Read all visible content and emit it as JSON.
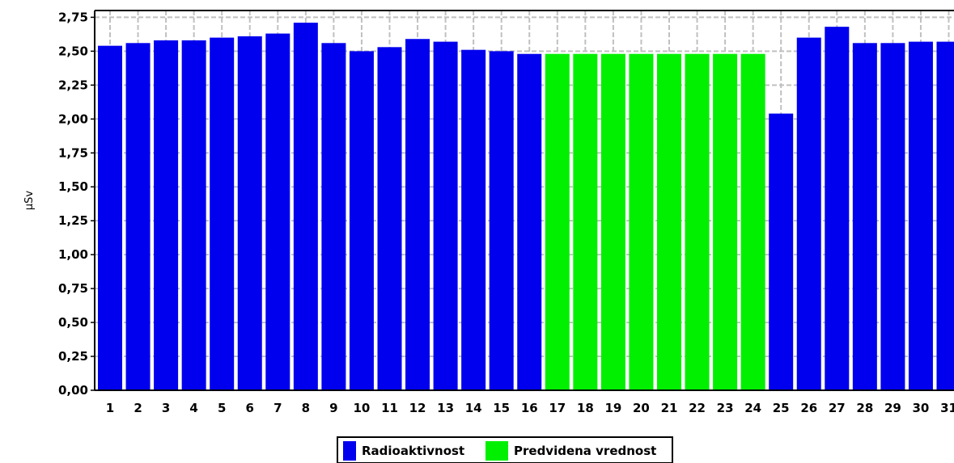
{
  "chart_data": {
    "type": "bar",
    "ylabel": "µSv",
    "ylim": [
      0,
      2.8
    ],
    "y_ticks": [
      "0,00",
      "0,25",
      "0,50",
      "0,75",
      "1,00",
      "1,25",
      "1,50",
      "1,75",
      "2,00",
      "2,25",
      "2,50",
      "2,75"
    ],
    "grid": true,
    "categories": [
      "1",
      "2",
      "3",
      "4",
      "5",
      "6",
      "7",
      "8",
      "9",
      "10",
      "11",
      "12",
      "13",
      "14",
      "15",
      "16",
      "17",
      "18",
      "19",
      "20",
      "21",
      "22",
      "23",
      "24",
      "25",
      "26",
      "27",
      "28",
      "29",
      "30",
      "31"
    ],
    "values": [
      2.54,
      2.56,
      2.58,
      2.58,
      2.6,
      2.61,
      2.63,
      2.71,
      2.56,
      2.5,
      2.53,
      2.59,
      2.57,
      2.51,
      2.5,
      2.48,
      2.48,
      2.48,
      2.48,
      2.48,
      2.48,
      2.48,
      2.48,
      2.48,
      2.04,
      2.6,
      2.68,
      2.56,
      2.56,
      2.57,
      2.57
    ],
    "series_index": [
      0,
      0,
      0,
      0,
      0,
      0,
      0,
      0,
      0,
      0,
      0,
      0,
      0,
      0,
      0,
      0,
      1,
      1,
      1,
      1,
      1,
      1,
      1,
      1,
      0,
      0,
      0,
      0,
      0,
      0,
      0
    ],
    "series": [
      {
        "name": "Radioaktivnost",
        "color": "#0000ee"
      },
      {
        "name": "Predvidena vrednost",
        "color": "#00f000"
      }
    ],
    "legend": "bottom"
  }
}
